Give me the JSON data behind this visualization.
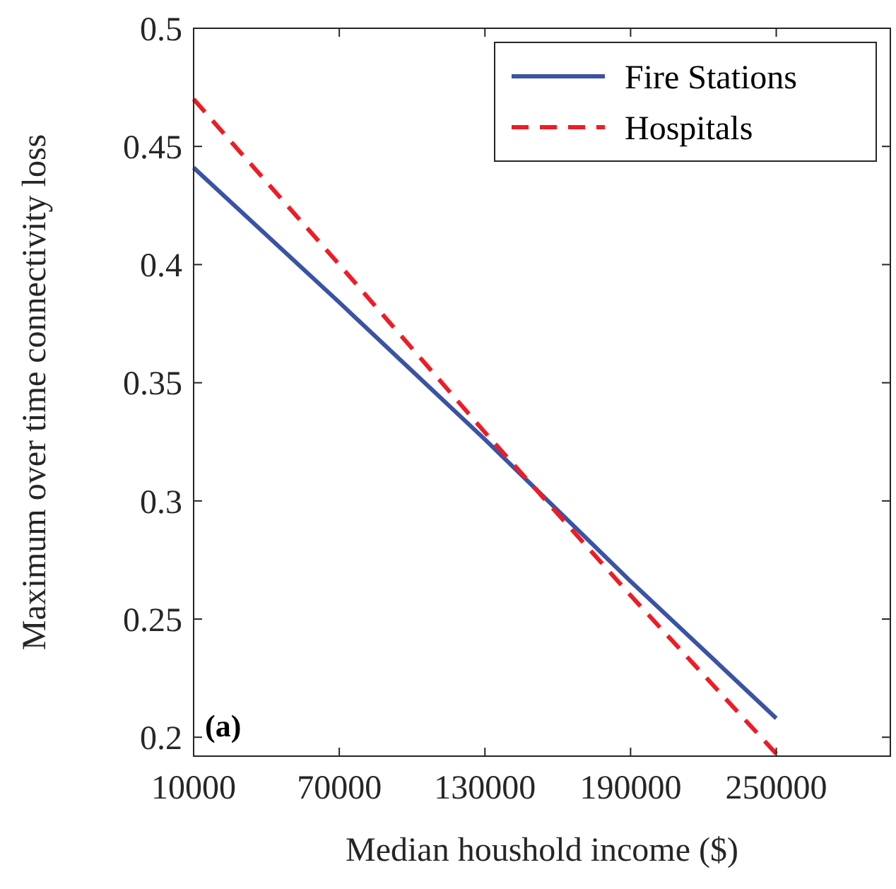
{
  "chart_data": {
    "type": "line",
    "xlabel": "Median houshold income ($)",
    "ylabel": "Maximum over time connectivity loss",
    "xlim": [
      10000,
      297000
    ],
    "ylim": [
      0.192,
      0.5
    ],
    "xticks": [
      10000,
      70000,
      130000,
      190000,
      250000
    ],
    "yticks": [
      0.2,
      0.25,
      0.3,
      0.35,
      0.4,
      0.45,
      0.5
    ],
    "series": [
      {
        "name": "Fire Stations",
        "color": "#3a53a4",
        "line_style": "solid",
        "x": [
          10000,
          70000,
          130000,
          190000,
          250000
        ],
        "values": [
          0.441,
          0.384,
          0.326,
          0.266,
          0.208
        ]
      },
      {
        "name": "Hospitals",
        "color": "#ee1c25",
        "line_style": "dashed",
        "x": [
          10000,
          70000,
          130000,
          190000,
          250000
        ],
        "values": [
          0.47,
          0.4,
          0.329,
          0.26,
          0.193
        ]
      }
    ],
    "annotations": [
      "(a)"
    ],
    "legend": "top right",
    "grid": false
  }
}
